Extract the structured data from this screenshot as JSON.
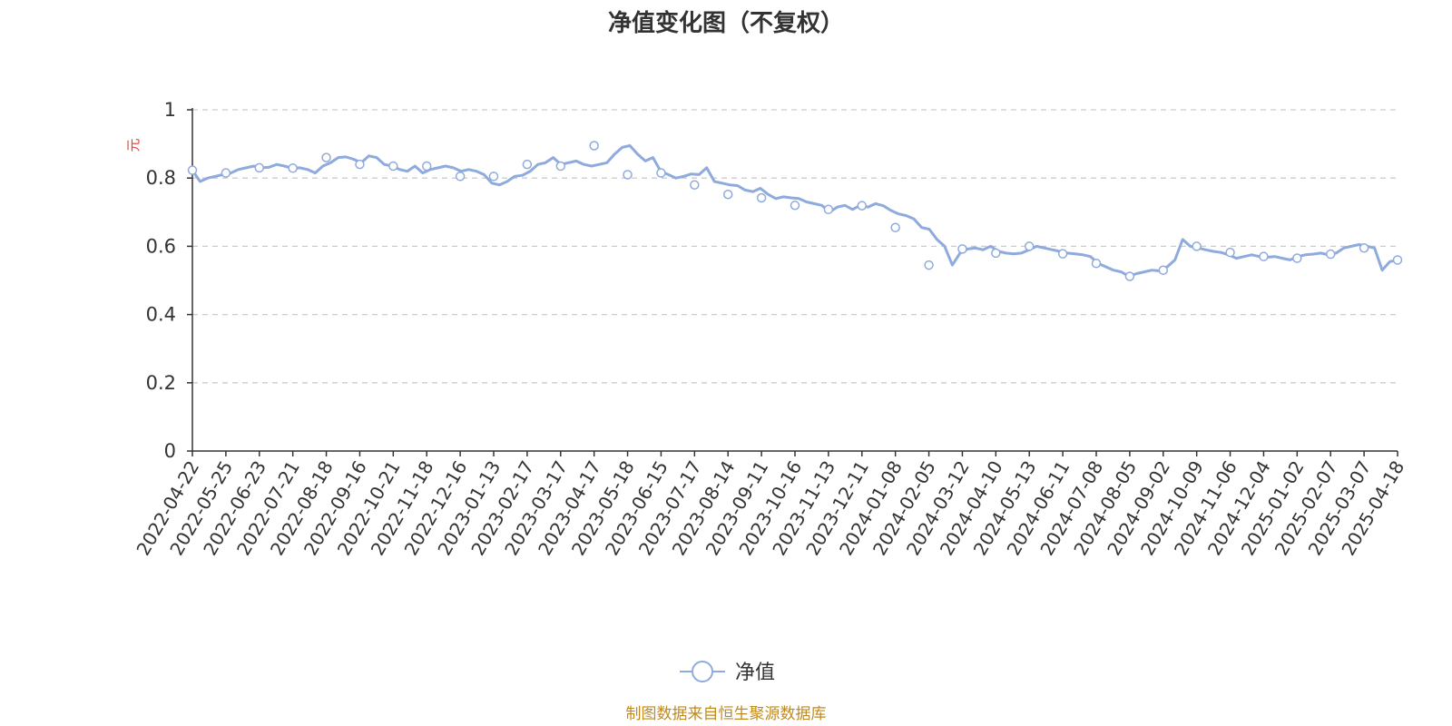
{
  "chart_data": {
    "type": "line",
    "title": "净值变化图（不复权）",
    "ylabel": "元",
    "ylim": [
      0,
      1
    ],
    "yticks": [
      "0",
      "0.2",
      "0.4",
      "0.6",
      "0.8",
      "1"
    ],
    "grid": true,
    "legend_position": "bottom-center",
    "categories": [
      "2022-04-22",
      "2022-05-25",
      "2022-06-23",
      "2022-07-21",
      "2022-08-18",
      "2022-09-16",
      "2022-10-21",
      "2022-11-18",
      "2022-12-16",
      "2023-01-13",
      "2023-02-17",
      "2023-03-17",
      "2023-04-17",
      "2023-05-18",
      "2023-06-15",
      "2023-07-17",
      "2023-08-14",
      "2023-09-11",
      "2023-10-16",
      "2023-11-13",
      "2023-12-11",
      "2024-01-08",
      "2024-02-05",
      "2024-03-12",
      "2024-04-10",
      "2024-05-13",
      "2024-06-11",
      "2024-07-08",
      "2024-08-05",
      "2024-09-02",
      "2024-10-09",
      "2024-11-06",
      "2024-12-04",
      "2025-01-02",
      "2025-02-07",
      "2025-03-07",
      "2025-04-18"
    ],
    "series": [
      {
        "name": "净值",
        "color": "#8faadc",
        "marker_values": [
          0.823,
          0.815,
          0.83,
          0.829,
          0.86,
          0.84,
          0.835,
          0.835,
          0.805,
          0.805,
          0.84,
          0.835,
          0.895,
          0.81,
          0.815,
          0.78,
          0.752,
          0.742,
          0.72,
          0.708,
          0.719,
          0.655,
          0.545,
          0.592,
          0.58,
          0.6,
          0.578,
          0.55,
          0.512,
          0.53,
          0.6,
          0.582,
          0.57,
          0.565,
          0.577,
          0.595,
          0.56
        ],
        "path_values": [
          0.823,
          0.79,
          0.8,
          0.805,
          0.81,
          0.815,
          0.825,
          0.83,
          0.835,
          0.83,
          0.832,
          0.84,
          0.835,
          0.829,
          0.83,
          0.825,
          0.815,
          0.835,
          0.845,
          0.86,
          0.862,
          0.855,
          0.845,
          0.865,
          0.86,
          0.84,
          0.835,
          0.825,
          0.82,
          0.835,
          0.815,
          0.825,
          0.83,
          0.835,
          0.83,
          0.82,
          0.825,
          0.82,
          0.81,
          0.785,
          0.78,
          0.79,
          0.805,
          0.808,
          0.82,
          0.84,
          0.845,
          0.86,
          0.84,
          0.845,
          0.85,
          0.84,
          0.835,
          0.84,
          0.845,
          0.87,
          0.89,
          0.895,
          0.87,
          0.85,
          0.86,
          0.82,
          0.81,
          0.8,
          0.805,
          0.812,
          0.81,
          0.83,
          0.79,
          0.785,
          0.78,
          0.778,
          0.765,
          0.76,
          0.77,
          0.752,
          0.74,
          0.745,
          0.742,
          0.74,
          0.73,
          0.725,
          0.72,
          0.7,
          0.715,
          0.72,
          0.708,
          0.72,
          0.715,
          0.725,
          0.719,
          0.705,
          0.695,
          0.69,
          0.68,
          0.655,
          0.65,
          0.62,
          0.6,
          0.545,
          0.58,
          0.592,
          0.595,
          0.59,
          0.6,
          0.585,
          0.58,
          0.578,
          0.58,
          0.59,
          0.6,
          0.595,
          0.59,
          0.585,
          0.58,
          0.578,
          0.575,
          0.57,
          0.55,
          0.54,
          0.53,
          0.525,
          0.512,
          0.52,
          0.525,
          0.53,
          0.528,
          0.54,
          0.56,
          0.62,
          0.6,
          0.595,
          0.59,
          0.585,
          0.582,
          0.575,
          0.565,
          0.57,
          0.575,
          0.57,
          0.568,
          0.57,
          0.565,
          0.56,
          0.57,
          0.575,
          0.577,
          0.58,
          0.575,
          0.58,
          0.595,
          0.6,
          0.605,
          0.6,
          0.595,
          0.53,
          0.555,
          0.56
        ]
      }
    ]
  },
  "legend": {
    "label": "净值"
  },
  "source": {
    "text": "制图数据来自恒生聚源数据库",
    "color": "#c08a1e"
  },
  "unit_color": "#e03c3c"
}
